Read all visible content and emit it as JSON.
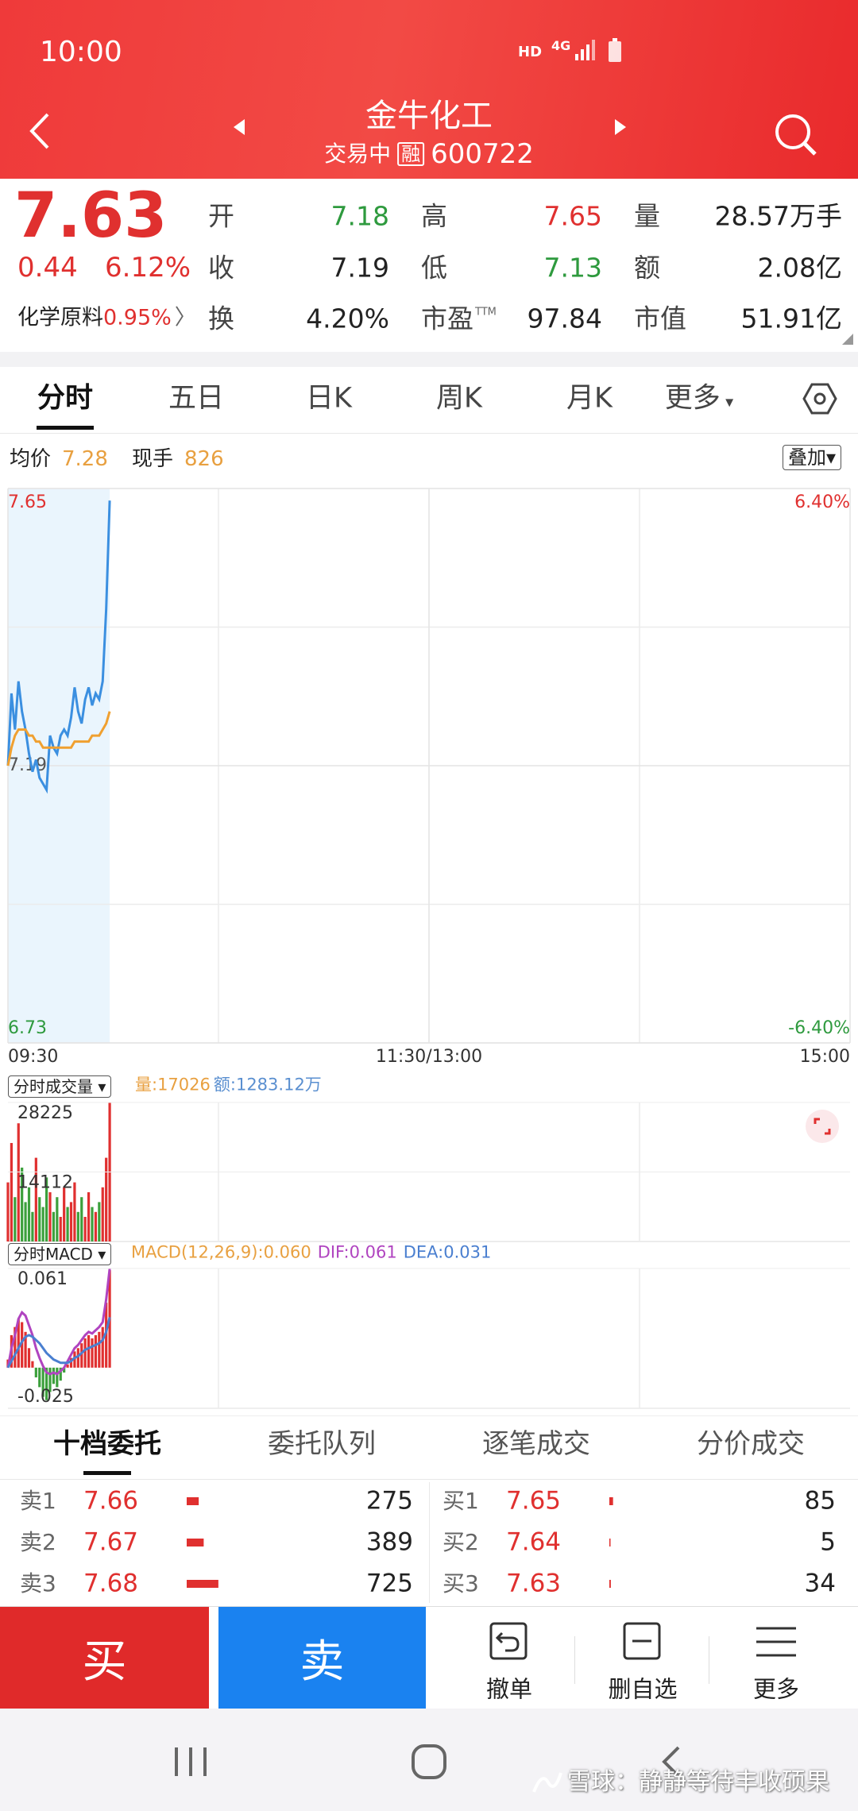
{
  "status_bar": {
    "time": "10:00",
    "hd": "HD",
    "network": "4G"
  },
  "header": {
    "title": "金牛化工",
    "status": "交易中",
    "badge": "融",
    "code": "600722"
  },
  "quote": {
    "price": "7.63",
    "change": "0.44",
    "change_pct": "6.12%",
    "sector": "化学原料",
    "sector_pct": "0.95%",
    "fields": [
      [
        {
          "label": "开",
          "value": "7.18",
          "color": "#2e9a3e"
        },
        {
          "label": "高",
          "value": "7.65",
          "color": "#e0302f"
        },
        {
          "label": "量",
          "value": "28.57万手",
          "color": "#222222"
        }
      ],
      [
        {
          "label": "收",
          "value": "7.19",
          "color": "#222222"
        },
        {
          "label": "低",
          "value": "7.13",
          "color": "#2e9a3e"
        },
        {
          "label": "额",
          "value": "2.08亿",
          "color": "#222222"
        }
      ],
      [
        {
          "label": "换",
          "value": "4.20%",
          "color": "#222222"
        },
        {
          "label": "市盈",
          "sup": "TTM",
          "value": "97.84",
          "color": "#222222"
        },
        {
          "label": "市值",
          "value": "51.91亿",
          "color": "#222222"
        }
      ]
    ]
  },
  "tabs": [
    "分时",
    "五日",
    "日K",
    "周K",
    "月K",
    "更多"
  ],
  "chart_info": {
    "avg_label": "均价",
    "avg": "7.28",
    "vol_label": "现手",
    "vol": "826",
    "overlay": "叠加"
  },
  "chart_data": [
    {
      "type": "line",
      "x": [
        0,
        1,
        2,
        3,
        4,
        5,
        6,
        7,
        8,
        9,
        10,
        11,
        12,
        13,
        14,
        15,
        16,
        17,
        18,
        19,
        20,
        21,
        22,
        23,
        24,
        25,
        26,
        27,
        28,
        29
      ],
      "xlim": [
        0,
        240
      ],
      "xticks": [
        {
          "value": 0,
          "label": "09:30"
        },
        {
          "value": 120,
          "label": "11:30/13:00"
        },
        {
          "value": 240,
          "label": "15:00"
        }
      ],
      "ylim": [
        6.73,
        7.65
      ],
      "yticks": [
        7.65,
        7.19,
        6.73
      ],
      "y2lim": [
        -6.4,
        6.4
      ],
      "y2ticks": [
        {
          "value": 6.4,
          "label": "6.40%"
        },
        {
          "value": -6.4,
          "label": "-6.40%"
        }
      ],
      "series": [
        {
          "color": "#3b8fe0",
          "values": [
            7.19,
            7.31,
            7.25,
            7.33,
            7.28,
            7.25,
            7.21,
            7.18,
            7.2,
            7.17,
            7.16,
            7.15,
            7.24,
            7.22,
            7.21,
            7.24,
            7.25,
            7.24,
            7.27,
            7.32,
            7.28,
            7.26,
            7.3,
            7.32,
            7.29,
            7.31,
            7.3,
            7.33,
            7.45,
            7.63
          ]
        },
        {
          "name": "均价",
          "color": "#f0a030",
          "values": [
            7.19,
            7.22,
            7.24,
            7.25,
            7.25,
            7.25,
            7.24,
            7.24,
            7.23,
            7.23,
            7.22,
            7.22,
            7.22,
            7.22,
            7.22,
            7.22,
            7.22,
            7.22,
            7.22,
            7.23,
            7.23,
            7.23,
            7.23,
            7.23,
            7.24,
            7.24,
            7.24,
            7.25,
            7.26,
            7.28
          ]
        }
      ]
    },
    {
      "type": "bar",
      "title": "分时成交量",
      "info": [
        {
          "text": "量:17026",
          "color": "#e8a040"
        },
        {
          "text": "额:1283.12万",
          "color": "#5a8fd0"
        }
      ],
      "x": [
        0,
        1,
        2,
        3,
        4,
        5,
        6,
        7,
        8,
        9,
        10,
        11,
        12,
        13,
        14,
        15,
        16,
        17,
        18,
        19,
        20,
        21,
        22,
        23,
        24,
        25,
        26,
        27,
        28,
        29
      ],
      "xlim": [
        0,
        240
      ],
      "values": [
        12000,
        20000,
        9000,
        24000,
        15000,
        8000,
        11000,
        6000,
        17000,
        9000,
        7000,
        13000,
        10000,
        6000,
        9000,
        5000,
        11000,
        7000,
        8000,
        12000,
        6000,
        9000,
        5000,
        10000,
        7000,
        6000,
        8000,
        11000,
        17000,
        28225
      ],
      "colors": [
        "#e03030",
        "#e03030",
        "#3ca03c",
        "#e03030",
        "#3ca03c",
        "#3ca03c",
        "#3ca03c",
        "#3ca03c",
        "#e03030",
        "#3ca03c",
        "#3ca03c",
        "#3ca03c",
        "#e03030",
        "#3ca03c",
        "#3ca03c",
        "#e03030",
        "#e03030",
        "#3ca03c",
        "#e03030",
        "#e03030",
        "#3ca03c",
        "#3ca03c",
        "#e03030",
        "#e03030",
        "#3ca03c",
        "#e03030",
        "#3ca03c",
        "#e03030",
        "#e03030",
        "#e03030"
      ],
      "ylim": [
        0,
        28225
      ],
      "yticks": [
        28225,
        14112
      ]
    },
    {
      "type": "macd",
      "title": "分时MACD",
      "info": [
        {
          "text": "MACD(12,26,9):0.060",
          "color": "#e8a040"
        },
        {
          "text": "DIF:0.061",
          "color": "#b044c0"
        },
        {
          "text": "DEA:0.031",
          "color": "#4a7fd0"
        }
      ],
      "x": [
        0,
        1,
        2,
        3,
        4,
        5,
        6,
        7,
        8,
        9,
        10,
        11,
        12,
        13,
        14,
        15,
        16,
        17,
        18,
        19,
        20,
        21,
        22,
        23,
        24,
        25,
        26,
        27,
        28,
        29
      ],
      "xlim": [
        0,
        240
      ],
      "ylim": [
        -0.025,
        0.061
      ],
      "yticks": [
        0.061,
        -0.025
      ],
      "up_color": "#e03030",
      "down_color": "#3ca03c",
      "bars": [
        0.005,
        0.02,
        0.025,
        0.03,
        0.028,
        0.022,
        0.012,
        0.004,
        -0.006,
        -0.012,
        -0.018,
        -0.02,
        -0.015,
        -0.01,
        -0.012,
        -0.008,
        -0.003,
        0.002,
        0.006,
        0.01,
        0.012,
        0.015,
        0.018,
        0.02,
        0.018,
        0.02,
        0.022,
        0.025,
        0.04,
        0.06
      ],
      "series": [
        {
          "color": "#b044c0",
          "values": [
            0,
            0.012,
            0.02,
            0.03,
            0.034,
            0.032,
            0.026,
            0.02,
            0.012,
            0.006,
            0.001,
            -0.003,
            -0.004,
            -0.003,
            -0.004,
            -0.002,
            0,
            0.004,
            0.008,
            0.012,
            0.014,
            0.017,
            0.02,
            0.022,
            0.021,
            0.023,
            0.025,
            0.028,
            0.042,
            0.061
          ]
        },
        {
          "color": "#4a7fd0",
          "values": [
            0,
            0.004,
            0.008,
            0.012,
            0.016,
            0.019,
            0.02,
            0.019,
            0.017,
            0.015,
            0.012,
            0.009,
            0.007,
            0.005,
            0.004,
            0.003,
            0.003,
            0.003,
            0.004,
            0.006,
            0.007,
            0.009,
            0.011,
            0.012,
            0.013,
            0.014,
            0.015,
            0.017,
            0.022,
            0.031
          ]
        }
      ]
    }
  ],
  "order_tabs": [
    "十档委托",
    "委托队列",
    "逐笔成交",
    "分价成交"
  ],
  "order_book": {
    "asks": [
      {
        "label": "卖1",
        "price": "7.66",
        "qty": 275
      },
      {
        "label": "卖2",
        "price": "7.67",
        "qty": 389
      },
      {
        "label": "卖3",
        "price": "7.68",
        "qty": 725
      }
    ],
    "bids": [
      {
        "label": "买1",
        "price": "7.65",
        "qty": 85
      },
      {
        "label": "买2",
        "price": "7.64",
        "qty": 5
      },
      {
        "label": "买3",
        "price": "7.63",
        "qty": 34
      }
    ]
  },
  "bottom_bar": {
    "buy": "买",
    "sell": "卖",
    "actions": [
      "撤单",
      "删自选",
      "更多"
    ]
  },
  "watermark": "雪球：静静等待丰收硕果"
}
